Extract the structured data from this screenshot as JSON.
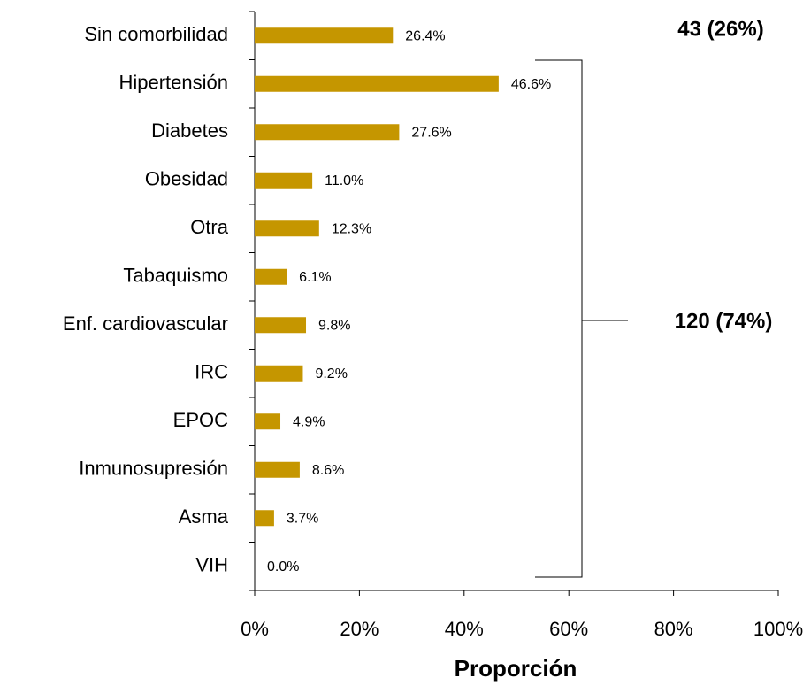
{
  "chart_data": {
    "type": "bar",
    "orientation": "horizontal",
    "categories": [
      "Sin comorbilidad",
      "Hipertensión",
      "Diabetes",
      "Obesidad",
      "Otra",
      "Tabaquismo",
      "Enf. cardiovascular",
      "IRC",
      "EPOC",
      "Inmunosupresión",
      "Asma",
      "VIH"
    ],
    "values": [
      26.4,
      46.6,
      27.6,
      11.0,
      12.3,
      6.1,
      9.8,
      9.2,
      4.9,
      8.6,
      3.7,
      0.0
    ],
    "value_labels": [
      "26.4%",
      "46.6%",
      "27.6%",
      "11.0%",
      "12.3%",
      "6.1%",
      "9.8%",
      "9.2%",
      "4.9%",
      "8.6%",
      "3.7%",
      "0.0%"
    ],
    "color": "#c59600",
    "xlabel": "Proporción",
    "xlim": [
      0,
      100
    ],
    "xticks": [
      {
        "value": 0,
        "label": "0%"
      },
      {
        "value": 20,
        "label": "20%"
      },
      {
        "value": 40,
        "label": "40%"
      },
      {
        "value": 60,
        "label": "60%"
      },
      {
        "value": 80,
        "label": "80%"
      },
      {
        "value": 100,
        "label": "100%"
      }
    ],
    "grid": false,
    "annotations": [
      "43 (26%)",
      "120 (74%)"
    ]
  }
}
